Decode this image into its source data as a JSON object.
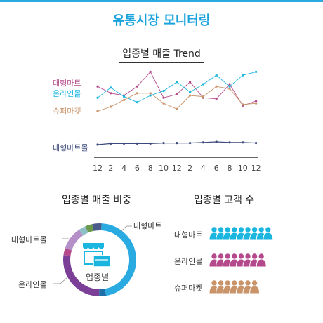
{
  "title": "유통시장 모니터링",
  "colors": {
    "accent": "#1aa3dc",
    "mart": "#b44a8c",
    "online": "#1ab6e0",
    "super": "#c9946a",
    "martmall": "#3b4a7a"
  },
  "chart_data": [
    {
      "type": "line",
      "title": "업종별 매출 Trend",
      "x": [
        "12",
        "2",
        "4",
        "6",
        "8",
        "10",
        "12",
        "2",
        "4",
        "6",
        "8",
        "10",
        "12"
      ],
      "series": [
        {
          "name": "대형마트",
          "values": [
            73,
            67,
            65,
            73,
            86,
            63,
            66,
            77,
            63,
            62,
            75,
            56,
            60
          ]
        },
        {
          "name": "온라인몰",
          "values": [
            63,
            72,
            64,
            59,
            65,
            69,
            77,
            68,
            75,
            83,
            73,
            83,
            86
          ]
        },
        {
          "name": "슈퍼마켓",
          "values": [
            51,
            55,
            61,
            67,
            67,
            58,
            53,
            65,
            64,
            73,
            71,
            57,
            58
          ]
        },
        {
          "name": "대형마트몰",
          "values": [
            35,
            36,
            36,
            36,
            36,
            36.5,
            36.5,
            36.5,
            37,
            37.5,
            37,
            37,
            36.5
          ]
        }
      ],
      "grid": false,
      "legend": "left"
    },
    {
      "type": "pie",
      "title": "업종별 매출 비중",
      "center_label": "업종별",
      "categories": [
        "대형마트",
        "",
        "온라인몰",
        "",
        "대형마트몰",
        "",
        "",
        ""
      ],
      "values": [
        45,
        3,
        26,
        3,
        10,
        3,
        3,
        4
      ],
      "slice_colors": [
        "#29abe2",
        "#1e6fa8",
        "#7b3f98",
        "#b44a8c",
        "#b590c8",
        "#8fc0c8",
        "#6a9a4a",
        "#4a5a8a"
      ]
    },
    {
      "type": "bar",
      "title": "업종별 고객 수",
      "categories": [
        "대형마트",
        "온라인몰",
        "슈퍼마켓"
      ],
      "values": [
        9,
        8,
        7
      ],
      "colors": [
        "#1ab6e0",
        "#b44a8c",
        "#c9946a"
      ]
    }
  ]
}
